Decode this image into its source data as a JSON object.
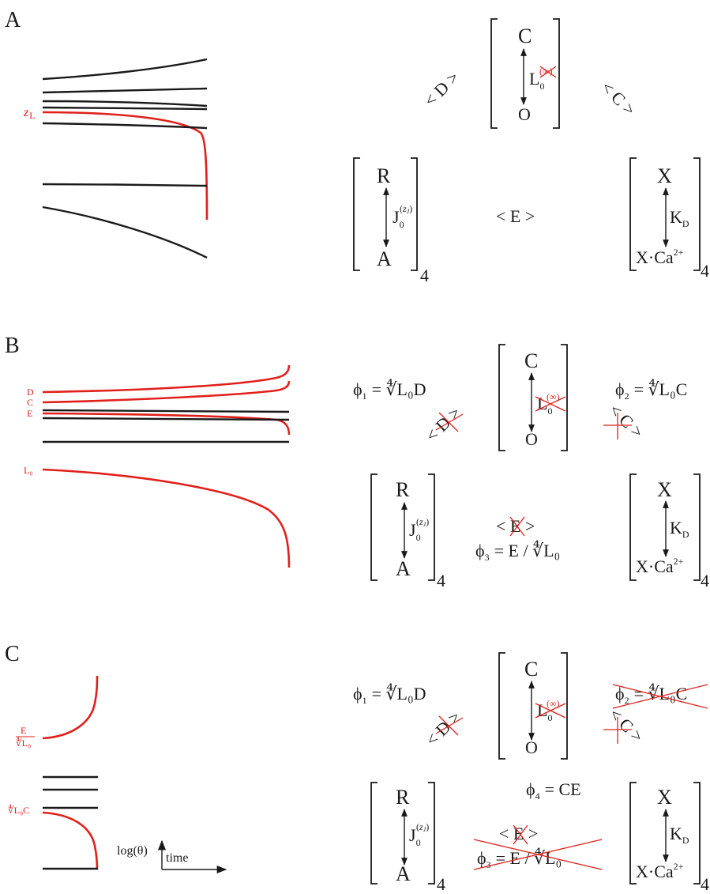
{
  "panels": {
    "a": "A",
    "b": "B",
    "c": "C"
  },
  "states": {
    "c": "C",
    "o": "O",
    "r": "R",
    "a": "A",
    "x": "X",
    "xca_base": "X·Ca",
    "xca_sup": "2+",
    "subscript4": "4"
  },
  "couplings": {
    "l0": "L",
    "l0_sub": "0",
    "l0_sup_a": "(∞)",
    "l0_sup_bc": "(∞)",
    "j": "J",
    "j_sub": "0",
    "j_sup": "(z",
    "j_sup_sub": "J",
    "j_sup_close": ")",
    "kd": "K",
    "kd_sub": "D"
  },
  "allosteric": {
    "d": "< D >",
    "c": "< C >",
    "e": "< E >"
  },
  "phi": {
    "phi1": "ϕ",
    "phi1_sub": "1",
    "phi1_rhs": "= ∜L₀D",
    "phi2": "ϕ",
    "phi2_sub": "2",
    "phi2_rhs": "= ∜L₀C",
    "phi3": "ϕ",
    "phi3_sub": "3",
    "phi3_rhs": "= E / ∜L₀",
    "phi4": "ϕ",
    "phi4_sub": "4",
    "phi4_rhs": "= CE"
  },
  "flow_labels": {
    "zl": "z",
    "zl_sub": "L",
    "d": "D",
    "c": "C",
    "e": "E",
    "l0": "L₀",
    "e_over_root_num": "E",
    "e_over_root_den": "∜L₀",
    "root_c": "∜L₀C"
  },
  "axes": {
    "y_label": "log(θ)",
    "x_label": "time"
  },
  "colors": {
    "ink": "#1a1a1a",
    "accent": "#e0201b"
  }
}
